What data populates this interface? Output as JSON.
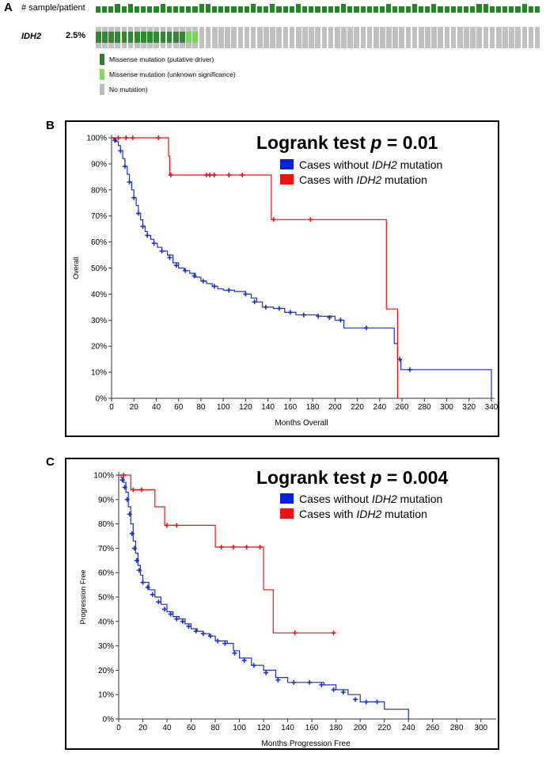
{
  "panel_a": {
    "letter": "A",
    "row1_label": "# sample/patient",
    "gene": "IDH2",
    "percent": "2.5%",
    "total_cells": 69,
    "driver_cells": 14,
    "unknown_cells": 2,
    "colors": {
      "samples": "#1f8b1f",
      "driver": "#2f8a2f",
      "unknown": "#6fdc4a",
      "none": "#c0c0c0"
    },
    "legend": [
      {
        "label": "Missense mutation (putative driver)",
        "color": "#2f7d2f"
      },
      {
        "label": "Missense mutation (unknown significance)",
        "color": "#7ee05a"
      },
      {
        "label": "No mutation)",
        "color": "#bcbcbc"
      }
    ]
  },
  "chart_data": [
    {
      "panel": "B",
      "type": "line",
      "title_prefix": "Logrank test ",
      "title_p": "p",
      "title_suffix": " = 0.01",
      "xlabel": "Months Overall",
      "ylabel": "Overall",
      "xlim": [
        0,
        340
      ],
      "ylim": [
        0,
        100
      ],
      "x_ticks": [
        0,
        20,
        40,
        60,
        80,
        100,
        120,
        140,
        160,
        180,
        200,
        220,
        240,
        260,
        280,
        300,
        320,
        340
      ],
      "y_ticks": [
        "0%",
        "10%",
        "20%",
        "30%",
        "40%",
        "50%",
        "60%",
        "70%",
        "80%",
        "90%",
        "100%"
      ],
      "legend": [
        {
          "pre": "Cases without ",
          "gene": "IDH2",
          "post": " mutation",
          "color": "#0022dd"
        },
        {
          "pre": "Cases with ",
          "gene": "IDH2",
          "post": " mutation",
          "color": "#ee1111"
        }
      ],
      "series": [
        {
          "name": "Cases without IDH2 mutation",
          "color": "#1a2fd0",
          "points": [
            [
              0,
              100
            ],
            [
              2,
              99.5
            ],
            [
              4,
              98.5
            ],
            [
              6,
              97
            ],
            [
              8,
              95
            ],
            [
              10,
              92
            ],
            [
              12,
              89
            ],
            [
              14,
              86
            ],
            [
              16,
              83
            ],
            [
              18,
              80
            ],
            [
              20,
              77
            ],
            [
              22,
              74
            ],
            [
              24,
              71
            ],
            [
              26,
              68.5
            ],
            [
              28,
              66
            ],
            [
              30,
              64
            ],
            [
              32,
              62.5
            ],
            [
              35,
              61
            ],
            [
              38,
              59.5
            ],
            [
              41,
              58
            ],
            [
              45,
              56.5
            ],
            [
              50,
              55
            ],
            [
              55,
              52
            ],
            [
              60,
              50
            ],
            [
              65,
              49
            ],
            [
              70,
              48
            ],
            [
              75,
              46.5
            ],
            [
              80,
              45
            ],
            [
              85,
              44
            ],
            [
              90,
              43
            ],
            [
              95,
              42
            ],
            [
              100,
              41.5
            ],
            [
              110,
              41
            ],
            [
              120,
              40
            ],
            [
              125,
              38.5
            ],
            [
              130,
              37
            ],
            [
              135,
              35
            ],
            [
              145,
              34.5
            ],
            [
              155,
              33
            ],
            [
              165,
              32
            ],
            [
              175,
              32
            ],
            [
              185,
              31.5
            ],
            [
              200,
              30
            ],
            [
              208,
              27
            ],
            [
              230,
              27
            ],
            [
              250,
              27
            ],
            [
              253,
              21
            ],
            [
              256,
              15
            ],
            [
              259,
              11
            ],
            [
              270,
              11
            ],
            [
              300,
              11
            ],
            [
              340,
              11
            ],
            [
              340,
              0
            ]
          ],
          "censor": [
            [
              3,
              99
            ],
            [
              8,
              95
            ],
            [
              12,
              89
            ],
            [
              16,
              83
            ],
            [
              20,
              77
            ],
            [
              24,
              71
            ],
            [
              28,
              66
            ],
            [
              32,
              62.5
            ],
            [
              38,
              59.5
            ],
            [
              45,
              56.5
            ],
            [
              52,
              54
            ],
            [
              58,
              51
            ],
            [
              66,
              49
            ],
            [
              74,
              47
            ],
            [
              82,
              45
            ],
            [
              92,
              43
            ],
            [
              105,
              41.5
            ],
            [
              120,
              40
            ],
            [
              128,
              37
            ],
            [
              138,
              35
            ],
            [
              150,
              34.5
            ],
            [
              160,
              33
            ],
            [
              172,
              32
            ],
            [
              185,
              31.5
            ],
            [
              195,
              31
            ],
            [
              205,
              30
            ],
            [
              228,
              27
            ],
            [
              258,
              15
            ],
            [
              267,
              11
            ]
          ]
        },
        {
          "name": "Cases with IDH2 mutation",
          "color": "#ee1111",
          "points": [
            [
              0,
              100
            ],
            [
              51,
              100
            ],
            [
              51,
              93
            ],
            [
              52,
              93
            ],
            [
              52,
              85.7
            ],
            [
              143,
              85.7
            ],
            [
              143,
              68.6
            ],
            [
              246,
              68.6
            ],
            [
              246,
              34.3
            ],
            [
              256,
              34.3
            ],
            [
              256,
              0
            ]
          ],
          "censor": [
            [
              6,
              100
            ],
            [
              13,
              100
            ],
            [
              19,
              100
            ],
            [
              42,
              100
            ],
            [
              53,
              85.7
            ],
            [
              85,
              85.7
            ],
            [
              88,
              85.7
            ],
            [
              92,
              85.7
            ],
            [
              105,
              85.7
            ],
            [
              117,
              85.7
            ],
            [
              145,
              68.6
            ],
            [
              178,
              68.6
            ]
          ]
        }
      ]
    },
    {
      "panel": "C",
      "type": "line",
      "title_prefix": "Logrank test ",
      "title_p": "p",
      "title_suffix": " = 0.004",
      "xlabel": "Months Progression Free",
      "ylabel": "Progression Free",
      "xlim": [
        0,
        310
      ],
      "ylim": [
        0,
        100
      ],
      "x_ticks": [
        0,
        20,
        40,
        60,
        80,
        100,
        120,
        140,
        160,
        180,
        200,
        220,
        240,
        260,
        280,
        300
      ],
      "y_ticks": [
        "0%",
        "10%",
        "20%",
        "30%",
        "40%",
        "50%",
        "60%",
        "70%",
        "80%",
        "90%",
        "100%"
      ],
      "legend": [
        {
          "pre": "Cases without ",
          "gene": "IDH2",
          "post": " mutation",
          "color": "#0022dd"
        },
        {
          "pre": "Cases with ",
          "gene": "IDH2",
          "post": " mutation",
          "color": "#ee1111"
        }
      ],
      "series": [
        {
          "name": "Cases without IDH2 mutation",
          "color": "#1a2fd0",
          "points": [
            [
              0,
              100
            ],
            [
              2,
              99
            ],
            [
              4,
              97
            ],
            [
              6,
              93
            ],
            [
              8,
              87
            ],
            [
              10,
              80
            ],
            [
              12,
              73
            ],
            [
              14,
              68
            ],
            [
              16,
              63
            ],
            [
              18,
              59
            ],
            [
              20,
              56
            ],
            [
              25,
              53
            ],
            [
              30,
              50
            ],
            [
              35,
              47
            ],
            [
              40,
              44
            ],
            [
              45,
              42
            ],
            [
              50,
              41
            ],
            [
              55,
              39
            ],
            [
              60,
              37
            ],
            [
              65,
              36
            ],
            [
              70,
              35
            ],
            [
              75,
              34
            ],
            [
              80,
              32
            ],
            [
              90,
              31
            ],
            [
              95,
              28
            ],
            [
              100,
              25
            ],
            [
              110,
              22
            ],
            [
              120,
              20
            ],
            [
              130,
              17
            ],
            [
              140,
              15
            ],
            [
              155,
              15
            ],
            [
              170,
              14
            ],
            [
              180,
              12
            ],
            [
              190,
              10
            ],
            [
              200,
              7
            ],
            [
              210,
              7
            ],
            [
              220,
              4
            ],
            [
              240,
              4
            ],
            [
              240,
              0
            ]
          ],
          "censor": [
            [
              3,
              98
            ],
            [
              5,
              95
            ],
            [
              7,
              90
            ],
            [
              9,
              84
            ],
            [
              11,
              76
            ],
            [
              13,
              70
            ],
            [
              15,
              65
            ],
            [
              17,
              61
            ],
            [
              20,
              56
            ],
            [
              24,
              54
            ],
            [
              28,
              51
            ],
            [
              33,
              48
            ],
            [
              38,
              45
            ],
            [
              43,
              43
            ],
            [
              48,
              41
            ],
            [
              53,
              40
            ],
            [
              58,
              38
            ],
            [
              64,
              36
            ],
            [
              70,
              35
            ],
            [
              76,
              34
            ],
            [
              82,
              32
            ],
            [
              88,
              31
            ],
            [
              96,
              27
            ],
            [
              104,
              24
            ],
            [
              112,
              22
            ],
            [
              122,
              19
            ],
            [
              132,
              16
            ],
            [
              145,
              15
            ],
            [
              158,
              15
            ],
            [
              168,
              14
            ],
            [
              178,
              12
            ],
            [
              186,
              11
            ],
            [
              196,
              8
            ],
            [
              205,
              7
            ],
            [
              214,
              7
            ]
          ]
        },
        {
          "name": "Cases with IDH2 mutation",
          "color": "#ee1111",
          "points": [
            [
              0,
              100
            ],
            [
              10,
              100
            ],
            [
              10,
              94
            ],
            [
              30,
              94
            ],
            [
              30,
              87
            ],
            [
              38,
              87
            ],
            [
              38,
              79.4
            ],
            [
              80,
              79.4
            ],
            [
              80,
              70.5
            ],
            [
              120,
              70.5
            ],
            [
              120,
              53
            ],
            [
              128,
              53
            ],
            [
              128,
              35.3
            ],
            [
              178,
              35.3
            ]
          ],
          "censor": [
            [
              4,
              100
            ],
            [
              12,
              94
            ],
            [
              19,
              94
            ],
            [
              40,
              79.4
            ],
            [
              48,
              79.4
            ],
            [
              85,
              70.5
            ],
            [
              95,
              70.5
            ],
            [
              106,
              70.5
            ],
            [
              117,
              70.5
            ],
            [
              146,
              35.3
            ],
            [
              178,
              35.3
            ]
          ]
        }
      ]
    }
  ]
}
